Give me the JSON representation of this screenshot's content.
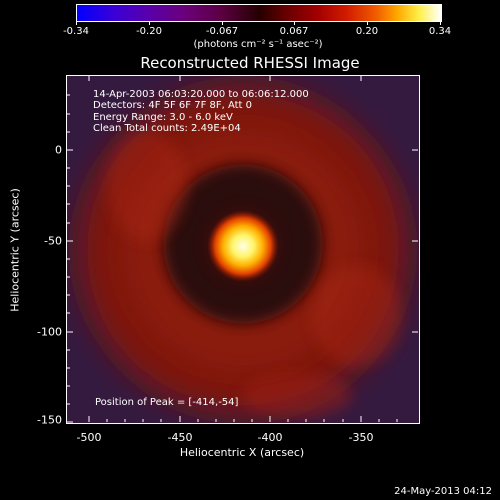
{
  "colorbar": {
    "tick_labels": [
      "-0.34",
      "-0.20",
      "-0.067",
      "0.067",
      "0.20",
      "0.34"
    ],
    "units": "(photons cm⁻² s⁻¹ asec⁻²)"
  },
  "plot": {
    "title": "Reconstructed RHESSI Image",
    "annotations": [
      "14-Apr-2003 06:03:20.000 to 06:06:12.000",
      "Detectors: 4F 5F 6F 7F 8F, Att 0",
      "Energy Range: 3.0 - 6.0 keV",
      "Clean     Total counts: 2.49E+04"
    ],
    "peak_label": "Position of Peak = [-414,-54]",
    "x_axis": {
      "label": "Heliocentric X (arcsec)",
      "ticks": [
        "-500",
        "-450",
        "-400",
        "-350"
      ]
    },
    "y_axis": {
      "label": "Heliocentric Y (arcsec)",
      "ticks": [
        "0",
        "-50",
        "-100",
        "-150"
      ]
    }
  },
  "timestamp": "24-May-2013 04:12",
  "colors": {
    "background": "#000000",
    "ring": "#8a1308",
    "peak": "#fff9c0",
    "outer": "#3a1a4a"
  }
}
